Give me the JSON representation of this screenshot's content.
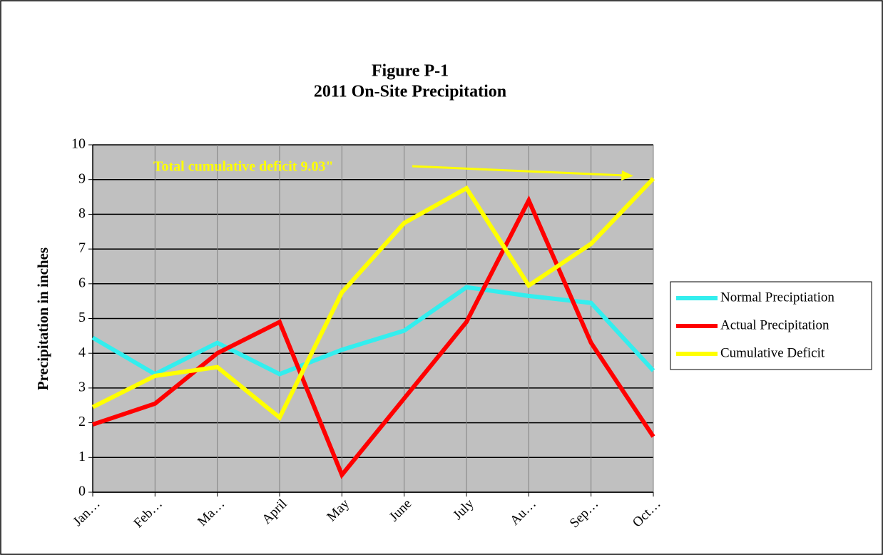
{
  "chart_data": {
    "type": "line",
    "title": "Figure P-1",
    "subtitle": "2011 On-Site Precipitation",
    "y_label": "Precipitation in inches",
    "annotation": "Total cumulative deficit 9.03\"",
    "categories": [
      "Jan…",
      "Feb…",
      "Ma…",
      "April",
      "May",
      "June",
      "July",
      "Au…",
      "Sep…",
      "Oct…"
    ],
    "series": [
      {
        "name": "Normal Preciptiation",
        "color": "#33eeee",
        "values": [
          4.45,
          3.4,
          4.3,
          3.4,
          4.1,
          4.65,
          5.9,
          5.65,
          5.45,
          3.5
        ]
      },
      {
        "name": "Actual Precipitation",
        "color": "#ff0000",
        "values": [
          1.95,
          2.55,
          4.0,
          4.9,
          0.5,
          2.7,
          4.9,
          8.4,
          4.3,
          1.6
        ]
      },
      {
        "name": "Cumulative Deficit",
        "color": "#ffff00",
        "values": [
          2.45,
          3.35,
          3.6,
          2.15,
          5.75,
          7.75,
          8.75,
          5.95,
          7.15,
          9.03
        ]
      }
    ],
    "ylim": [
      0,
      10
    ],
    "yticks": [
      0,
      1,
      2,
      3,
      4,
      5,
      6,
      7,
      8,
      9,
      10
    ],
    "grid": true,
    "legend": "right"
  }
}
